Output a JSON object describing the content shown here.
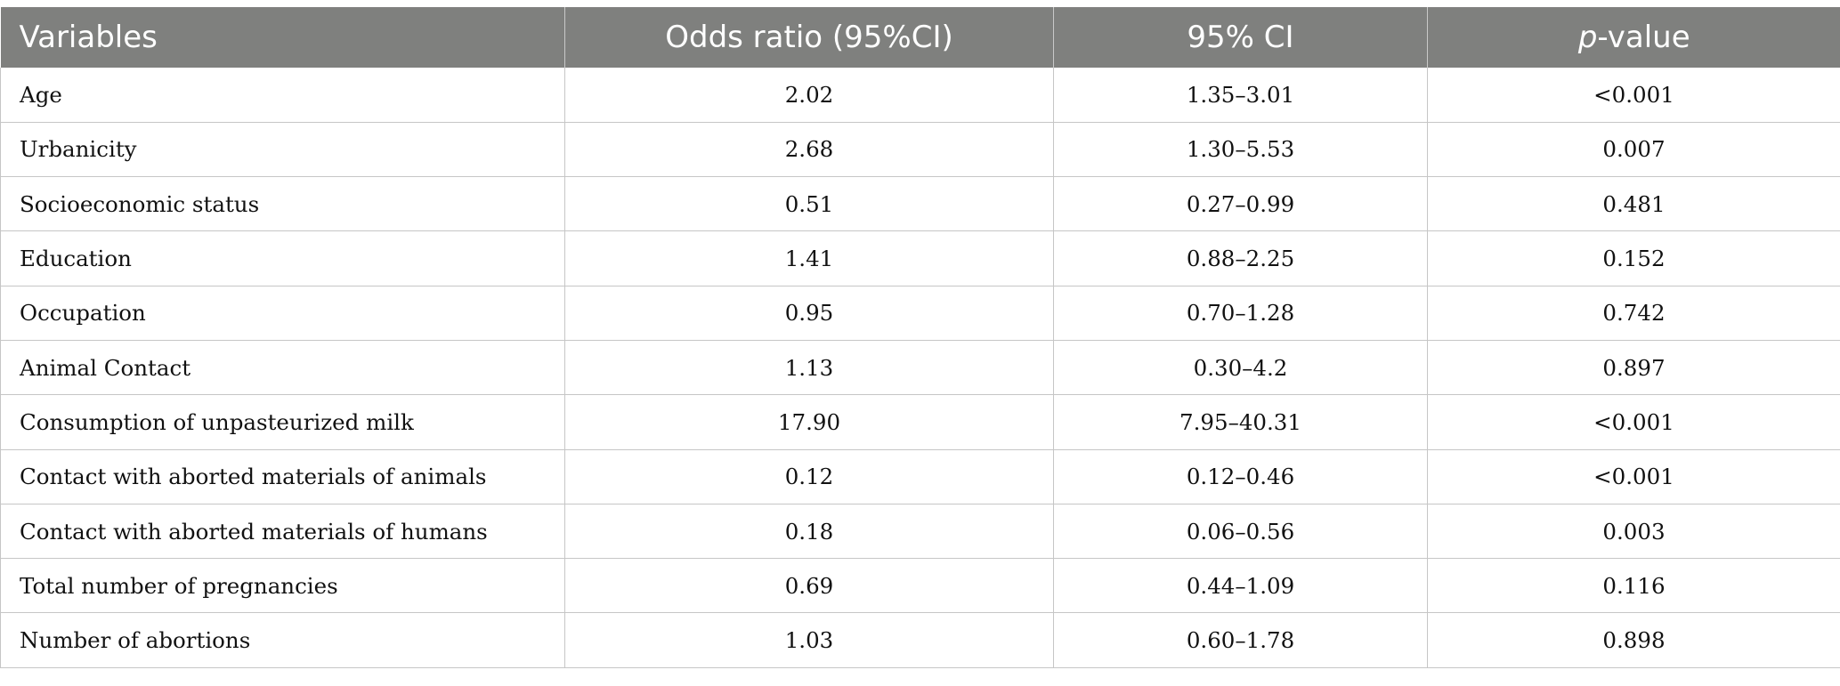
{
  "table": {
    "headers": {
      "variables": "Variables",
      "odds_ratio": "Odds ratio (95%CI)",
      "ci": "95% CI",
      "p_italic": "p",
      "p_rest": "-value"
    },
    "rows": [
      {
        "variable": "Age",
        "odds_ratio": "2.02",
        "ci": "1.35–3.01",
        "p_value": "<0.001"
      },
      {
        "variable": "Urbanicity",
        "odds_ratio": "2.68",
        "ci": "1.30–5.53",
        "p_value": "0.007"
      },
      {
        "variable": "Socioeconomic status",
        "odds_ratio": "0.51",
        "ci": "0.27–0.99",
        "p_value": "0.481"
      },
      {
        "variable": "Education",
        "odds_ratio": "1.41",
        "ci": "0.88–2.25",
        "p_value": "0.152"
      },
      {
        "variable": "Occupation",
        "odds_ratio": "0.95",
        "ci": "0.70–1.28",
        "p_value": "0.742"
      },
      {
        "variable": "Animal Contact",
        "odds_ratio": "1.13",
        "ci": "0.30–4.2",
        "p_value": "0.897"
      },
      {
        "variable": "Consumption of unpasteurized milk",
        "odds_ratio": "17.90",
        "ci": "7.95–40.31",
        "p_value": "<0.001"
      },
      {
        "variable": "Contact with aborted materials of animals",
        "odds_ratio": "0.12",
        "ci": "0.12–0.46",
        "p_value": "<0.001"
      },
      {
        "variable": "Contact with aborted materials of humans",
        "odds_ratio": "0.18",
        "ci": "0.06–0.56",
        "p_value": "0.003"
      },
      {
        "variable": "Total number of pregnancies",
        "odds_ratio": "0.69",
        "ci": "0.44–1.09",
        "p_value": "0.116"
      },
      {
        "variable": "Number of abortions",
        "odds_ratio": "1.03",
        "ci": "0.60–1.78",
        "p_value": "0.898"
      }
    ]
  },
  "colors": {
    "header_bg": "#7f807e",
    "header_text": "#ffffff",
    "grid": "#c6c6c6"
  }
}
